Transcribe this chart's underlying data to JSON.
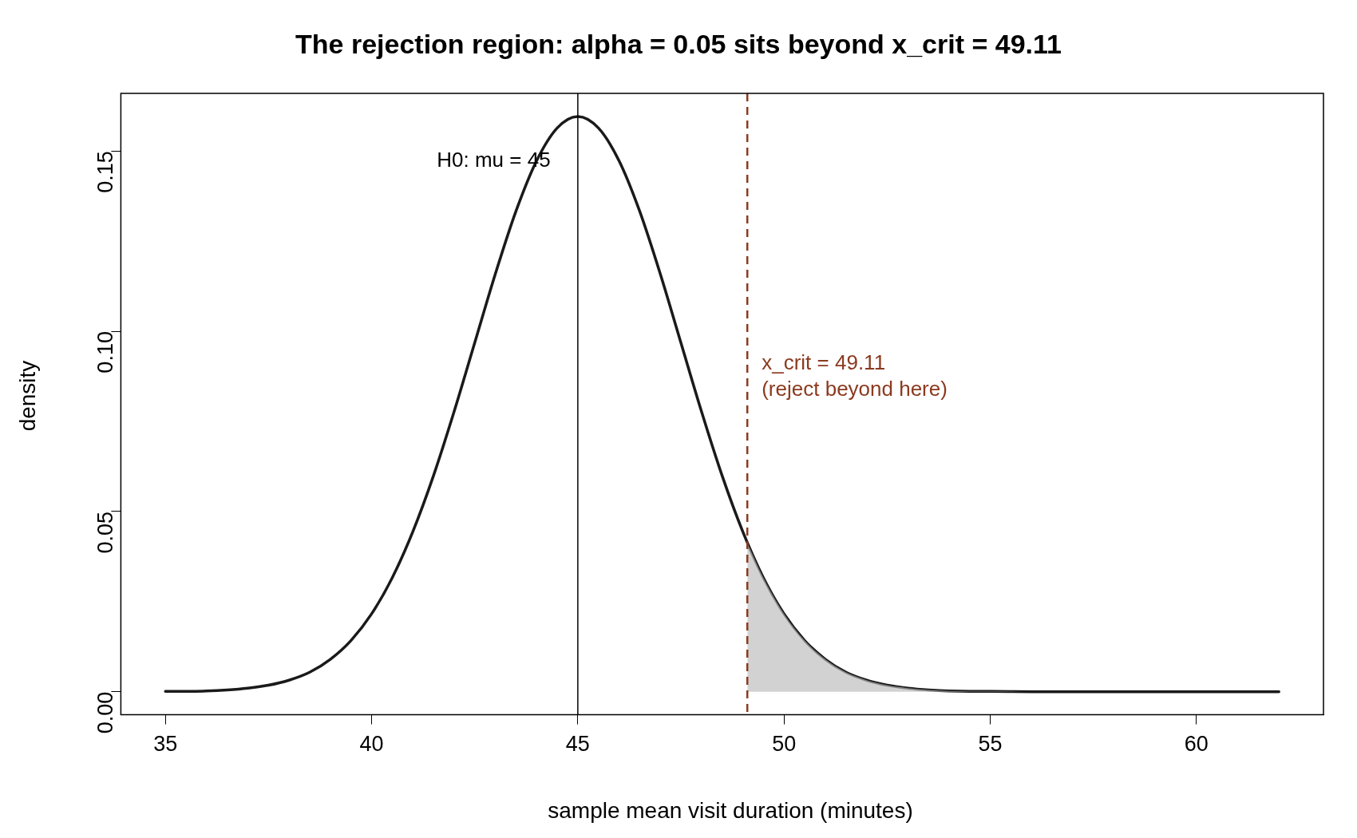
{
  "chart_data": {
    "type": "line",
    "title": "The rejection region: alpha = 0.05 sits beyond x_crit = 49.11",
    "xlabel": "sample mean visit duration (minutes)",
    "ylabel": "density",
    "xlim": [
      33.92,
      63.08
    ],
    "xticks": [
      35,
      40,
      45,
      50,
      55,
      60
    ],
    "ylim": [
      -0.0064,
      0.166
    ],
    "yticks": [
      {
        "value": 0,
        "label": "0.00"
      },
      0.05,
      {
        "value": 0.1,
        "label": "0.10"
      },
      0.15
    ],
    "grid": false,
    "legend": false,
    "marker": "none",
    "series": [
      {
        "type": "area",
        "color": "#bbbbbb",
        "x": [
          49.11,
          49.5,
          50,
          50.5,
          51,
          51.5,
          52,
          52.5,
          53,
          53.5,
          54,
          54.5,
          55,
          56,
          58,
          60,
          62
        ],
        "values": [
          0.0413,
          0.0316,
          0.0216,
          0.0142,
          0.009,
          0.0054,
          0.0032,
          0.0018,
          0.001,
          0.0005,
          0.0002,
          0.0001,
          0.0001,
          0,
          0,
          0,
          0
        ]
      },
      {
        "color": "#1a1a1a",
        "x": [
          35,
          35.5,
          36,
          36.5,
          37,
          37.5,
          38,
          38.5,
          39,
          39.5,
          40,
          40.5,
          41,
          41.5,
          42,
          42.5,
          43,
          43.5,
          44,
          44.5,
          45,
          45.5,
          46,
          46.5,
          47,
          47.5,
          48,
          48.5,
          49,
          49.5,
          50,
          50.5,
          51,
          51.5,
          52,
          52.5,
          53,
          53.5,
          54,
          54.5,
          55,
          56,
          58,
          60,
          62
        ],
        "values": [
          0.0001,
          0.0001,
          0.0002,
          0.0005,
          0.001,
          0.0018,
          0.0032,
          0.0054,
          0.009,
          0.0142,
          0.0216,
          0.0316,
          0.0444,
          0.0599,
          0.0777,
          0.0968,
          0.1159,
          0.1333,
          0.1473,
          0.1564,
          0.1596,
          0.1564,
          0.1473,
          0.1333,
          0.1159,
          0.0968,
          0.0777,
          0.0599,
          0.0444,
          0.0316,
          0.0216,
          0.0142,
          0.009,
          0.0054,
          0.0032,
          0.0018,
          0.001,
          0.0005,
          0.0002,
          0.0001,
          0.0001,
          0,
          0,
          0,
          0
        ]
      }
    ],
    "ref_lines": [
      {
        "axis": "x",
        "value": 45,
        "color": "#000000",
        "line_style": "solid"
      },
      {
        "axis": "x",
        "value": 49.11,
        "color": "#8b3a1f",
        "line_style": "dashed",
        "label": "x_crit = 49.11\n(reject beyond here)"
      }
    ],
    "annotations": [
      "H0: mu = 45"
    ]
  }
}
